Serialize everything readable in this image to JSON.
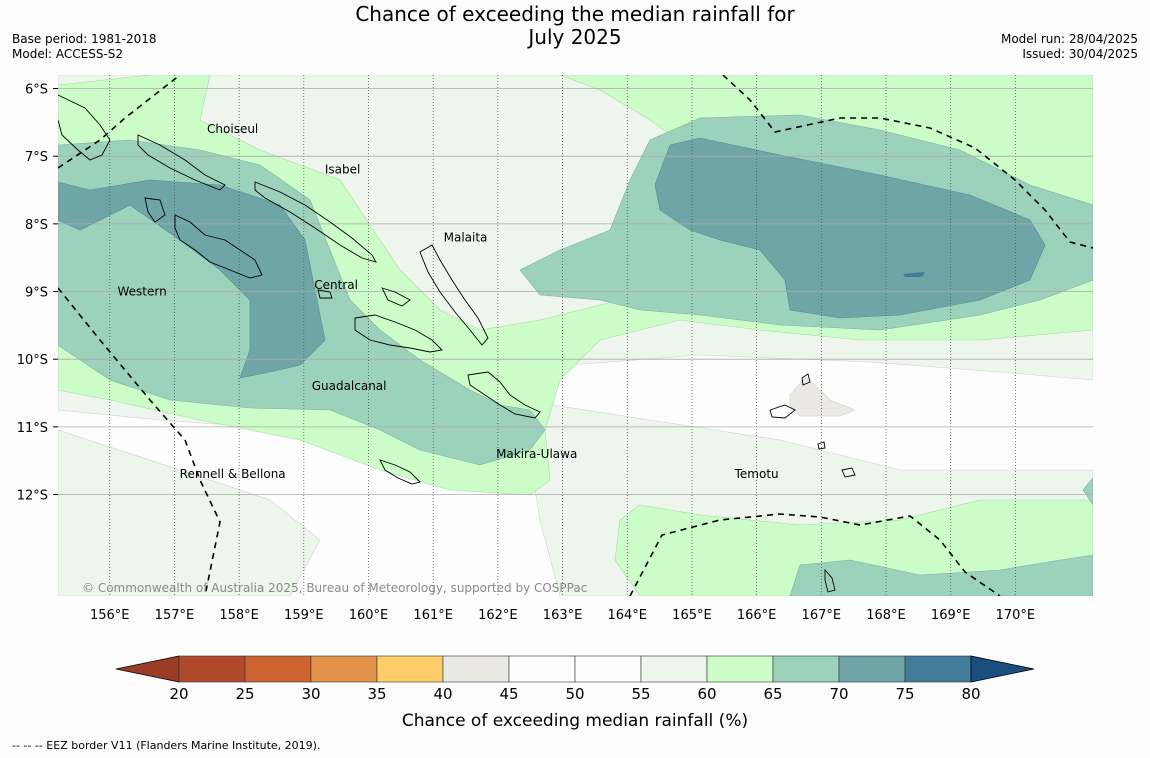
{
  "title_line1": "Chance of exceeding the median rainfall for",
  "title_line2": "July 2025",
  "base_period": "Base period: 1981-2018",
  "model": "Model: ACCESS-S2",
  "model_run": "Model run: 28/04/2025",
  "issued": "Issued: 30/04/2025",
  "copyright": "© Commonwealth of Australia 2025, Bureau of Meteorology, supported by COSPPac",
  "eez_credit": "--  --  -- EEZ border V11 (Flanders Marine Institute, 2019).",
  "colorbar": {
    "label": "Chance of exceeding median rainfall (%)",
    "ticks": [
      20,
      25,
      30,
      35,
      40,
      45,
      50,
      55,
      60,
      65,
      70,
      75,
      80
    ],
    "colors": [
      "#b14a2b",
      "#cd6331",
      "#e3934a",
      "#fecd6a",
      "#ebe9e6",
      "#fcfdfc",
      "#fcfdfc",
      "#eef5ec",
      "#ccfdc9",
      "#9cd1bc",
      "#6fa5a7",
      "#437c99"
    ],
    "low_extend_color": "#9b3c26",
    "high_extend_color": "#184f7e"
  },
  "map": {
    "lon_range": [
      155.2,
      171.2
    ],
    "lat_range": [
      -13.5,
      -5.8
    ],
    "lon_ticks": [
      156,
      157,
      158,
      159,
      160,
      161,
      162,
      163,
      164,
      165,
      166,
      167,
      168,
      169,
      170
    ],
    "lon_tick_labels": [
      "156°E",
      "157°E",
      "158°E",
      "159°E",
      "160°E",
      "161°E",
      "162°E",
      "163°E",
      "164°E",
      "165°E",
      "166°E",
      "167°E",
      "168°E",
      "169°E",
      "170°E"
    ],
    "lat_ticks": [
      -6,
      -7,
      -8,
      -9,
      -10,
      -11,
      -12
    ],
    "lat_tick_labels": [
      "6°S",
      "7°S",
      "8°S",
      "9°S",
      "10°S",
      "11°S",
      "12°S"
    ],
    "province_labels": [
      {
        "name": "Choiseul",
        "lon": 157.9,
        "lat": -6.6
      },
      {
        "name": "Isabel",
        "lon": 159.6,
        "lat": -7.2
      },
      {
        "name": "Malaita",
        "lon": 161.5,
        "lat": -8.2
      },
      {
        "name": "Western",
        "lon": 156.5,
        "lat": -9.0
      },
      {
        "name": "Central",
        "lon": 159.5,
        "lat": -8.9
      },
      {
        "name": "Guadalcanal",
        "lon": 159.7,
        "lat": -10.4
      },
      {
        "name": "Makira-Ulawa",
        "lon": 162.6,
        "lat": -11.4
      },
      {
        "name": "Rennell & Bellona",
        "lon": 157.9,
        "lat": -11.7
      },
      {
        "name": "Temotu",
        "lon": 166.0,
        "lat": -11.7
      }
    ]
  }
}
